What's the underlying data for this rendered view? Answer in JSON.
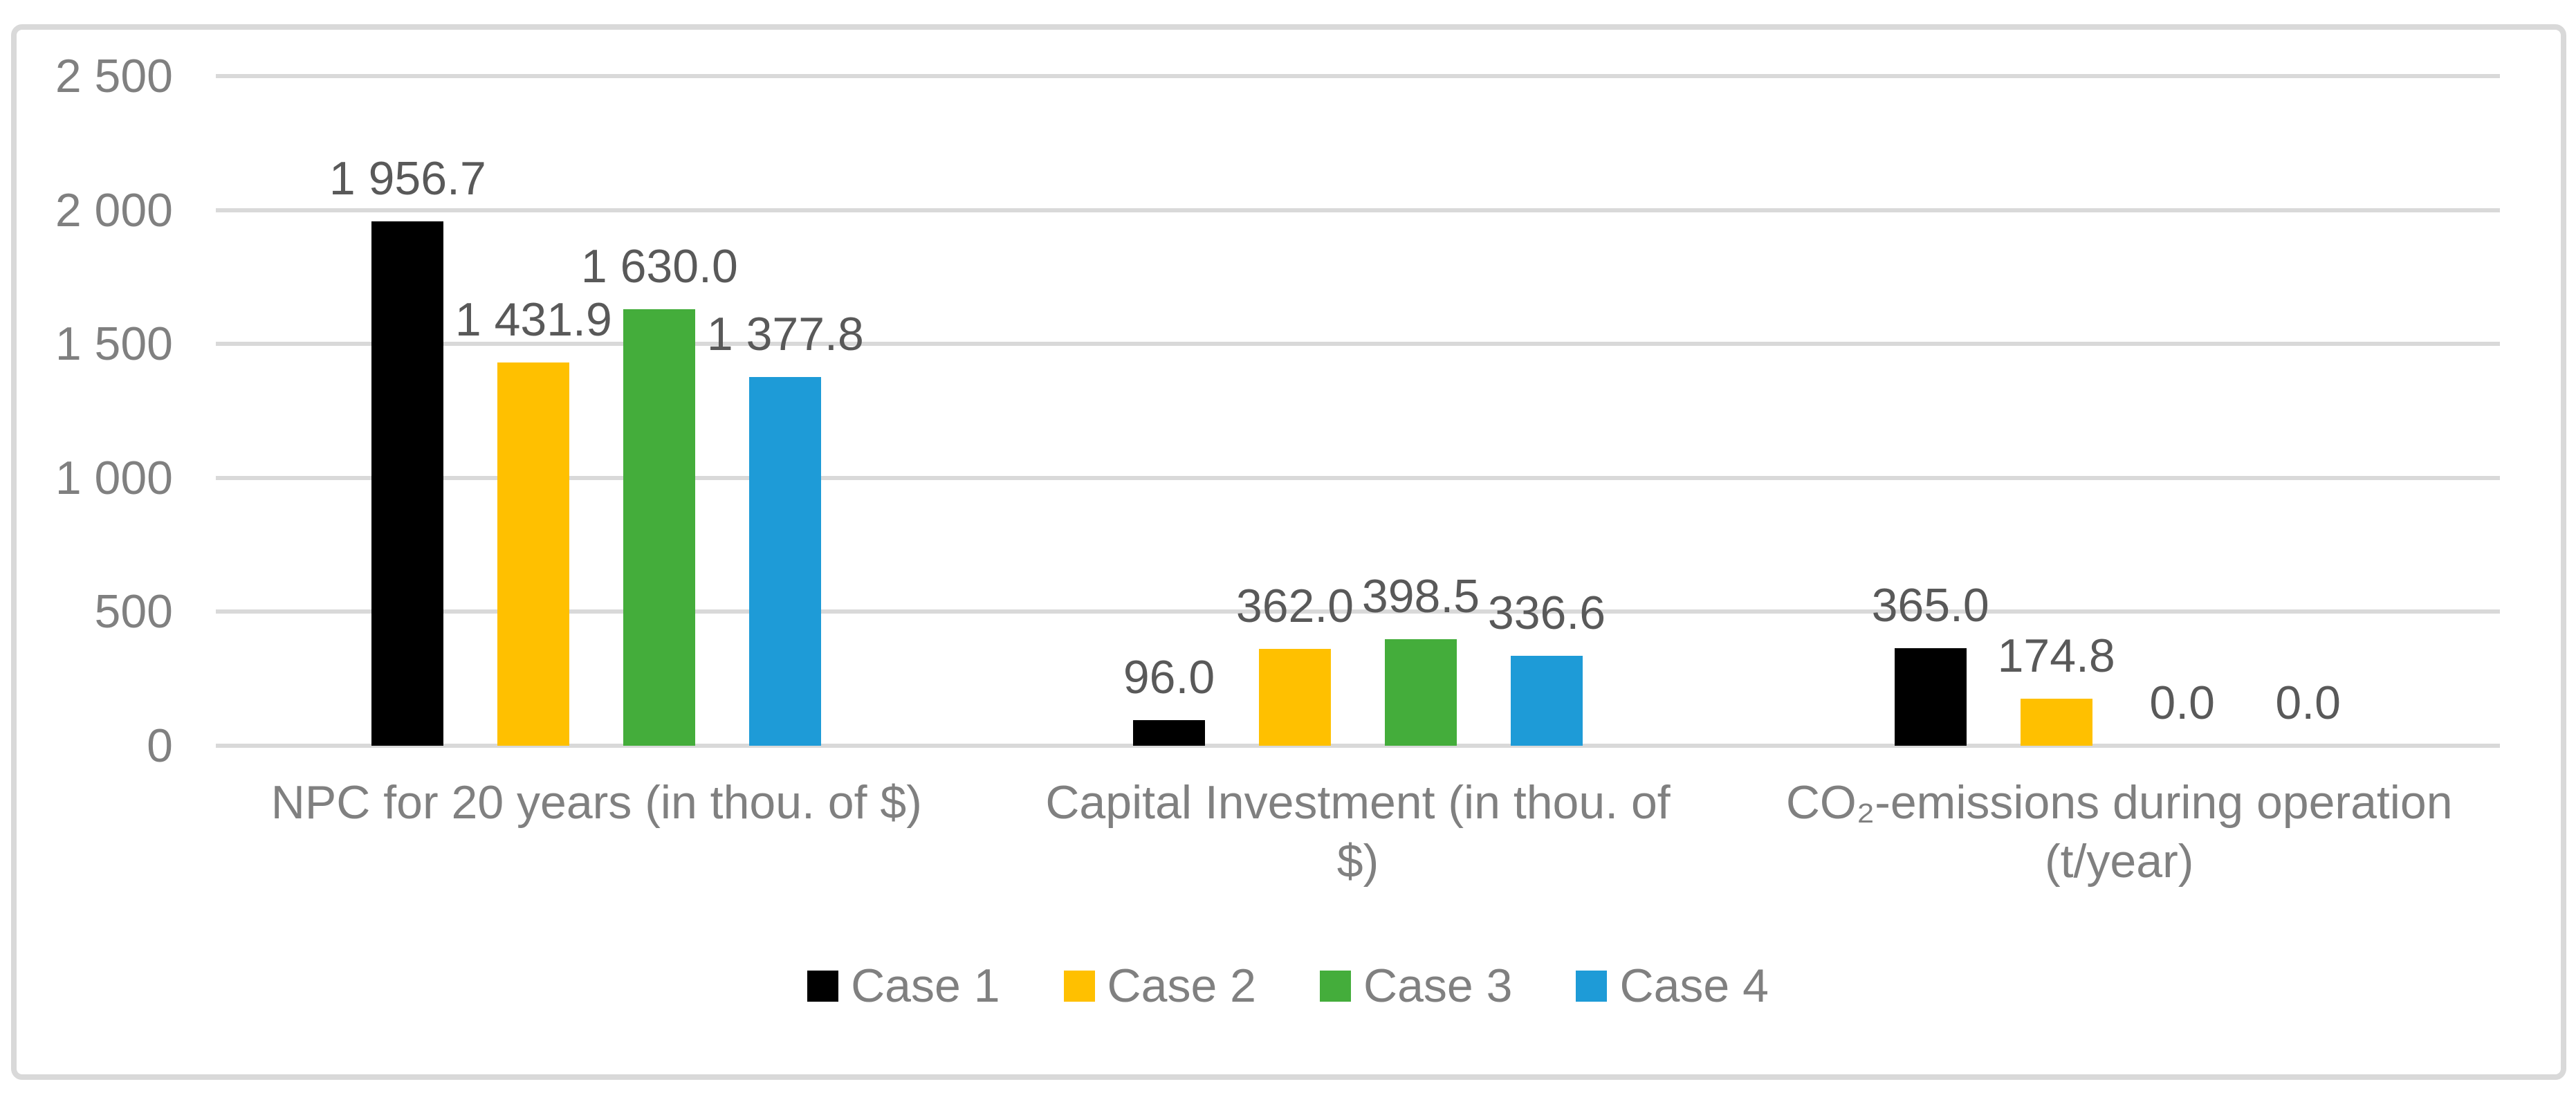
{
  "chart_data": {
    "type": "bar",
    "title": "",
    "categories": [
      "NPC for 20 years (in thou. of $)",
      "Capital Investment (in thou. of $)",
      "CO₂-emissions during operation (t/year)"
    ],
    "series": [
      {
        "name": "Case 1",
        "color": "#000000",
        "values": [
          1956.7,
          96.0,
          365.0
        ],
        "labels": [
          "1 956.7",
          "96.0",
          "365.0"
        ]
      },
      {
        "name": "Case 2",
        "color": "#FFC000",
        "values": [
          1431.9,
          362.0,
          174.8
        ],
        "labels": [
          "1 431.9",
          "362.0",
          "174.8"
        ]
      },
      {
        "name": "Case 3",
        "color": "#44AD3B",
        "values": [
          1630.0,
          398.5,
          0.0
        ],
        "labels": [
          "1 630.0",
          "398.5",
          "0.0"
        ]
      },
      {
        "name": "Case 4",
        "color": "#1E9BD7",
        "values": [
          1377.8,
          336.6,
          0.0
        ],
        "labels": [
          "1 377.8",
          "336.6",
          "0.0"
        ]
      }
    ],
    "y_axis": {
      "min": 0,
      "max": 2500,
      "tick_step": 500,
      "tick_labels_top_to_bottom": [
        "2 500",
        "2 000",
        "1 500",
        "1 000",
        "500",
        "0"
      ]
    },
    "xlabel": "",
    "ylabel": "",
    "grid": "horizontal",
    "legend_position": "bottom",
    "colors": {
      "gridline": "#D9D9D9",
      "frame_border": "#D9D9D9",
      "tick_text": "#808080",
      "category_text": "#808080",
      "legend_text": "#808080",
      "data_label_text": "#595959",
      "background": "#FFFFFF"
    }
  }
}
